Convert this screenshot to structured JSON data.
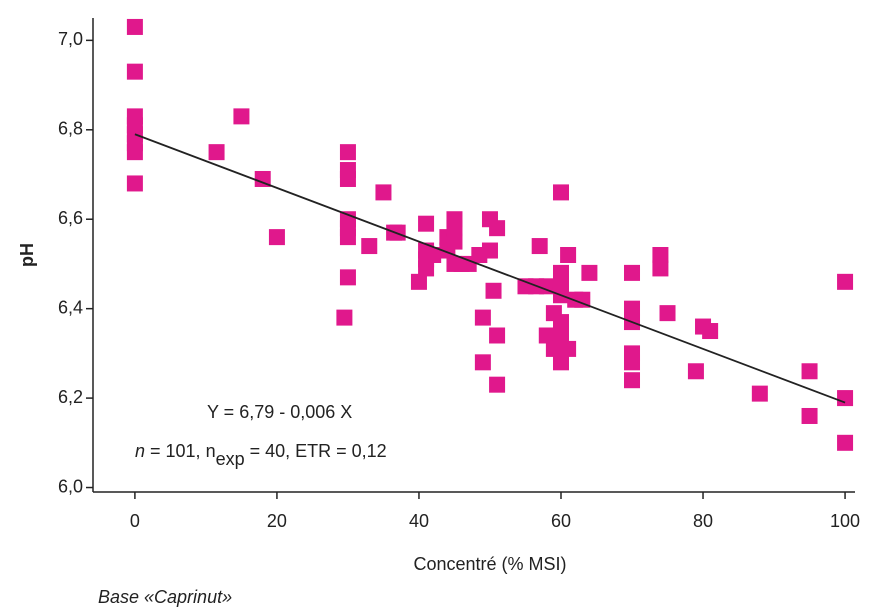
{
  "chart_data": {
    "type": "scatter",
    "x_label": "Concentré (% MSI)",
    "y_label": "pH",
    "footnote": "Base «Caprinut»",
    "annotation_line1": "Y = 6,79 - 0,006 X",
    "annotation_line2": [
      "n",
      " = 101, n",
      "exp",
      " = 40, ETR = 0,12"
    ],
    "regression": {
      "intercept": 6.79,
      "slope": -0.006,
      "color": "#222222"
    },
    "color": "#e0188c",
    "xlim": [
      -5.9,
      101.4
    ],
    "ylim": [
      5.99,
      7.05
    ],
    "xticks": [
      0,
      20,
      40,
      60,
      80,
      100
    ],
    "yticks": [
      {
        "value": 6.0,
        "label": "6,0"
      },
      {
        "value": 6.2,
        "label": "6,2"
      },
      {
        "value": 6.4,
        "label": "6,4"
      },
      {
        "value": 6.6,
        "label": "6,6"
      },
      {
        "value": 6.8,
        "label": "6,8"
      },
      {
        "value": 7.0,
        "label": "7,0"
      }
    ],
    "x": [
      0,
      0,
      0,
      0,
      0,
      0,
      0,
      0,
      11.5,
      15,
      18,
      20,
      29.5,
      30,
      30,
      30,
      30,
      30,
      30,
      30,
      33,
      35,
      36.5,
      37,
      40,
      41,
      41,
      41,
      41,
      42,
      44,
      44,
      45,
      45,
      45,
      45,
      46,
      47,
      48.5,
      49,
      49,
      50,
      50,
      50.5,
      51,
      51,
      51,
      55,
      57,
      56.5,
      58,
      58,
      59,
      59,
      60,
      60,
      60,
      60,
      60,
      60,
      60,
      60,
      61,
      61,
      62,
      63,
      64,
      70,
      70,
      70,
      70,
      70,
      70,
      74,
      74,
      75,
      79,
      80,
      81,
      88,
      95,
      95,
      100,
      100,
      100
    ],
    "y": [
      7.03,
      6.93,
      6.83,
      6.81,
      6.79,
      6.77,
      6.75,
      6.68,
      6.75,
      6.83,
      6.69,
      6.56,
      6.38,
      6.75,
      6.71,
      6.69,
      6.6,
      6.58,
      6.56,
      6.47,
      6.54,
      6.66,
      6.57,
      6.57,
      6.46,
      6.59,
      6.53,
      6.51,
      6.49,
      6.52,
      6.56,
      6.53,
      6.6,
      6.58,
      6.55,
      6.5,
      6.5,
      6.5,
      6.52,
      6.38,
      6.28,
      6.6,
      6.53,
      6.44,
      6.58,
      6.34,
      6.23,
      6.45,
      6.54,
      6.45,
      6.34,
      6.45,
      6.31,
      6.39,
      6.66,
      6.48,
      6.46,
      6.43,
      6.37,
      6.34,
      6.3,
      6.28,
      6.52,
      6.31,
      6.42,
      6.42,
      6.48,
      6.48,
      6.4,
      6.37,
      6.3,
      6.28,
      6.24,
      6.52,
      6.49,
      6.39,
      6.26,
      6.36,
      6.35,
      6.21,
      6.26,
      6.16,
      6.46,
      6.2,
      6.1
    ]
  }
}
